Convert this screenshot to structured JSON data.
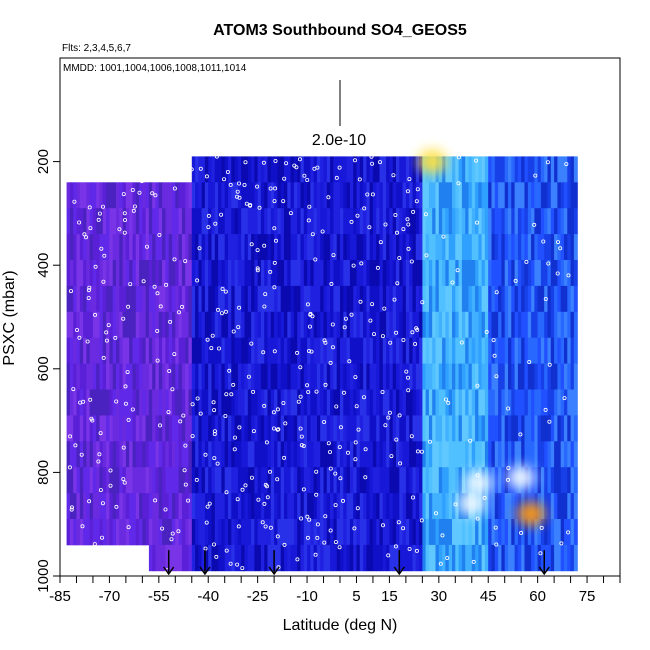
{
  "chart_data": {
    "type": "heatmap",
    "title": "ATOM3 Southbound SO4_GEOS5",
    "flights_label": "Flts: 2,3,4,5,6,7",
    "dates_label": "MMDD: 1001,1004,1006,1008,1011,1014",
    "xlabel": "Latitude (deg N)",
    "ylabel": "PSXC (mbar)",
    "xlim": [
      -85,
      85
    ],
    "ylim": [
      1000,
      0
    ],
    "x_ticks": [
      "-85",
      "-70",
      "-55",
      "-40",
      "-25",
      "-10",
      "5",
      "15",
      "30",
      "45",
      "60",
      "75"
    ],
    "y_ticks": [
      "200",
      "400",
      "600",
      "800",
      "1000"
    ],
    "scale_bar_label": "2.0e-10",
    "colors": {
      "purple": "#6a2ae0",
      "deep_blue": "#1010c8",
      "blue": "#2050ff",
      "light_blue": "#40b0ff",
      "white": "#f0f8ff",
      "yellow": "#ffe040",
      "orange": "#ff9a10"
    },
    "pressure_levels": [
      190,
      240,
      290,
      340,
      390,
      440,
      490,
      540,
      590,
      640,
      690,
      740,
      790,
      840,
      890,
      940,
      990
    ],
    "segments": [
      {
        "lat_start": -83,
        "lat_end": -58,
        "p_top": 230,
        "p_bottom": 960,
        "color": "purple"
      },
      {
        "lat_start": -58,
        "lat_end": -45,
        "p_top": 210,
        "p_bottom": 990,
        "color": "purple"
      },
      {
        "lat_start": -45,
        "lat_end": -20,
        "p_top": 190,
        "p_bottom": 990,
        "color": "deep_blue"
      },
      {
        "lat_start": -20,
        "lat_end": 5,
        "p_top": 190,
        "p_bottom": 990,
        "color": "deep_blue"
      },
      {
        "lat_start": 5,
        "lat_end": 25,
        "p_top": 190,
        "p_bottom": 990,
        "color": "deep_blue"
      },
      {
        "lat_start": 25,
        "lat_end": 45,
        "p_top": 190,
        "p_bottom": 990,
        "color": "light_blue"
      },
      {
        "lat_start": 45,
        "lat_end": 72,
        "p_top": 190,
        "p_bottom": 990,
        "color": "blue"
      }
    ],
    "hotspots": [
      {
        "lat": 28,
        "pressure": 200,
        "value": "yellow"
      },
      {
        "lat": 42,
        "pressure": 820,
        "value": "white"
      },
      {
        "lat": 58,
        "pressure": 880,
        "value": "orange"
      },
      {
        "lat": 55,
        "pressure": 810,
        "value": "white"
      },
      {
        "lat": 40,
        "pressure": 860,
        "value": "white"
      }
    ],
    "flight_arrows_lat": [
      -52,
      -41,
      -20,
      18,
      62
    ]
  }
}
